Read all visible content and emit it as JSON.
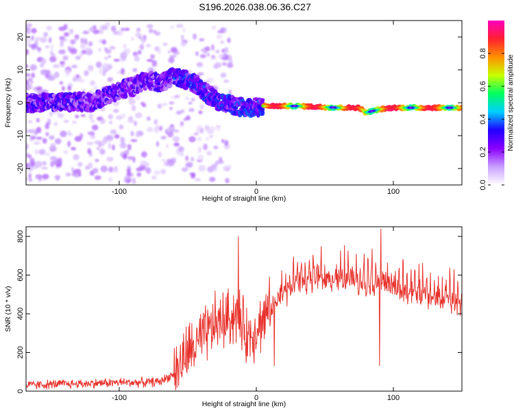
{
  "title": "S196.2026.038.06.36.C27",
  "chart_data": [
    {
      "type": "heatmap",
      "title": "S196.2026.038.06.36.C27",
      "xlabel": "Height of straight line (km)",
      "ylabel": "Frequency (Hz)",
      "xlim": [
        -168,
        150
      ],
      "ylim": [
        -25,
        25
      ],
      "xticks": [
        "-100",
        "0",
        "100"
      ],
      "xtick_values": [
        -100,
        0,
        100
      ],
      "yticks": [
        "-20",
        "-10",
        "0",
        "10",
        "20"
      ],
      "ytick_values": [
        -20,
        -10,
        0,
        10,
        20
      ],
      "colorbar": {
        "label": "Normalized spectral amplitude",
        "range": [
          0,
          1
        ],
        "ticks": [
          "0.0",
          "0.2",
          "0.4",
          "0.6",
          "0.8"
        ],
        "tick_values": [
          0,
          0.2,
          0.4,
          0.6,
          0.8
        ],
        "colormap": [
          "#ffffff",
          "#c8a0ff",
          "#8a00ff",
          "#2000ff",
          "#00d0ff",
          "#00ff60",
          "#c8ff00",
          "#ff9000",
          "#ff2030",
          "#ff00c0"
        ]
      },
      "ridge": [
        {
          "x": -168,
          "y": 0
        },
        {
          "x": -150,
          "y": 0
        },
        {
          "x": -140,
          "y": 0.5
        },
        {
          "x": -120,
          "y": 0
        },
        {
          "x": -110,
          "y": 2
        },
        {
          "x": -100,
          "y": 4
        },
        {
          "x": -90,
          "y": 5
        },
        {
          "x": -80,
          "y": 7
        },
        {
          "x": -70,
          "y": 6
        },
        {
          "x": -60,
          "y": 8
        },
        {
          "x": -50,
          "y": 7
        },
        {
          "x": -45,
          "y": 6
        },
        {
          "x": -40,
          "y": 4
        },
        {
          "x": -35,
          "y": 2.5
        },
        {
          "x": -30,
          "y": 1
        },
        {
          "x": -25,
          "y": 0
        },
        {
          "x": -15,
          "y": -1
        },
        {
          "x": -5,
          "y": -1.5
        },
        {
          "x": 5,
          "y": -1
        },
        {
          "x": 30,
          "y": -1
        },
        {
          "x": 60,
          "y": -1.5
        },
        {
          "x": 75,
          "y": -1.5
        },
        {
          "x": 80,
          "y": -3
        },
        {
          "x": 90,
          "y": -2
        },
        {
          "x": 100,
          "y": -1.5
        },
        {
          "x": 120,
          "y": -1.5
        },
        {
          "x": 150,
          "y": -1.5
        }
      ]
    },
    {
      "type": "line",
      "xlabel": "Height of straight line (km)",
      "ylabel": "SNR (10 * v/v)",
      "xlim": [
        -168,
        150
      ],
      "ylim": [
        0,
        850
      ],
      "xticks": [
        "-100",
        "0",
        "100"
      ],
      "xtick_values": [
        -100,
        0,
        100
      ],
      "yticks": [
        "0",
        "200",
        "400",
        "600",
        "800"
      ],
      "ytick_values": [
        0,
        200,
        400,
        600,
        800
      ],
      "color": "#e8302a",
      "series": [
        {
          "name": "SNR",
          "x": [
            -168,
            -150,
            -120,
            -100,
            -80,
            -70,
            -60,
            -50,
            -40,
            -35,
            -30,
            -25,
            -20,
            -15,
            -10,
            -5,
            0,
            5,
            10,
            15,
            20,
            25,
            30,
            40,
            50,
            60,
            70,
            80,
            90,
            100,
            110,
            120,
            130,
            140,
            150
          ],
          "y": [
            30,
            35,
            40,
            45,
            45,
            50,
            90,
            200,
            260,
            300,
            350,
            360,
            380,
            400,
            330,
            280,
            330,
            370,
            420,
            460,
            500,
            530,
            560,
            570,
            570,
            580,
            570,
            560,
            555,
            540,
            510,
            500,
            480,
            470,
            440
          ],
          "spikes": [
            {
              "x": -13,
              "y": 800
            },
            {
              "x": 91,
              "y": 840
            },
            {
              "x": 90,
              "y": 130
            },
            {
              "x": 13,
              "y": 130
            }
          ]
        }
      ]
    }
  ]
}
